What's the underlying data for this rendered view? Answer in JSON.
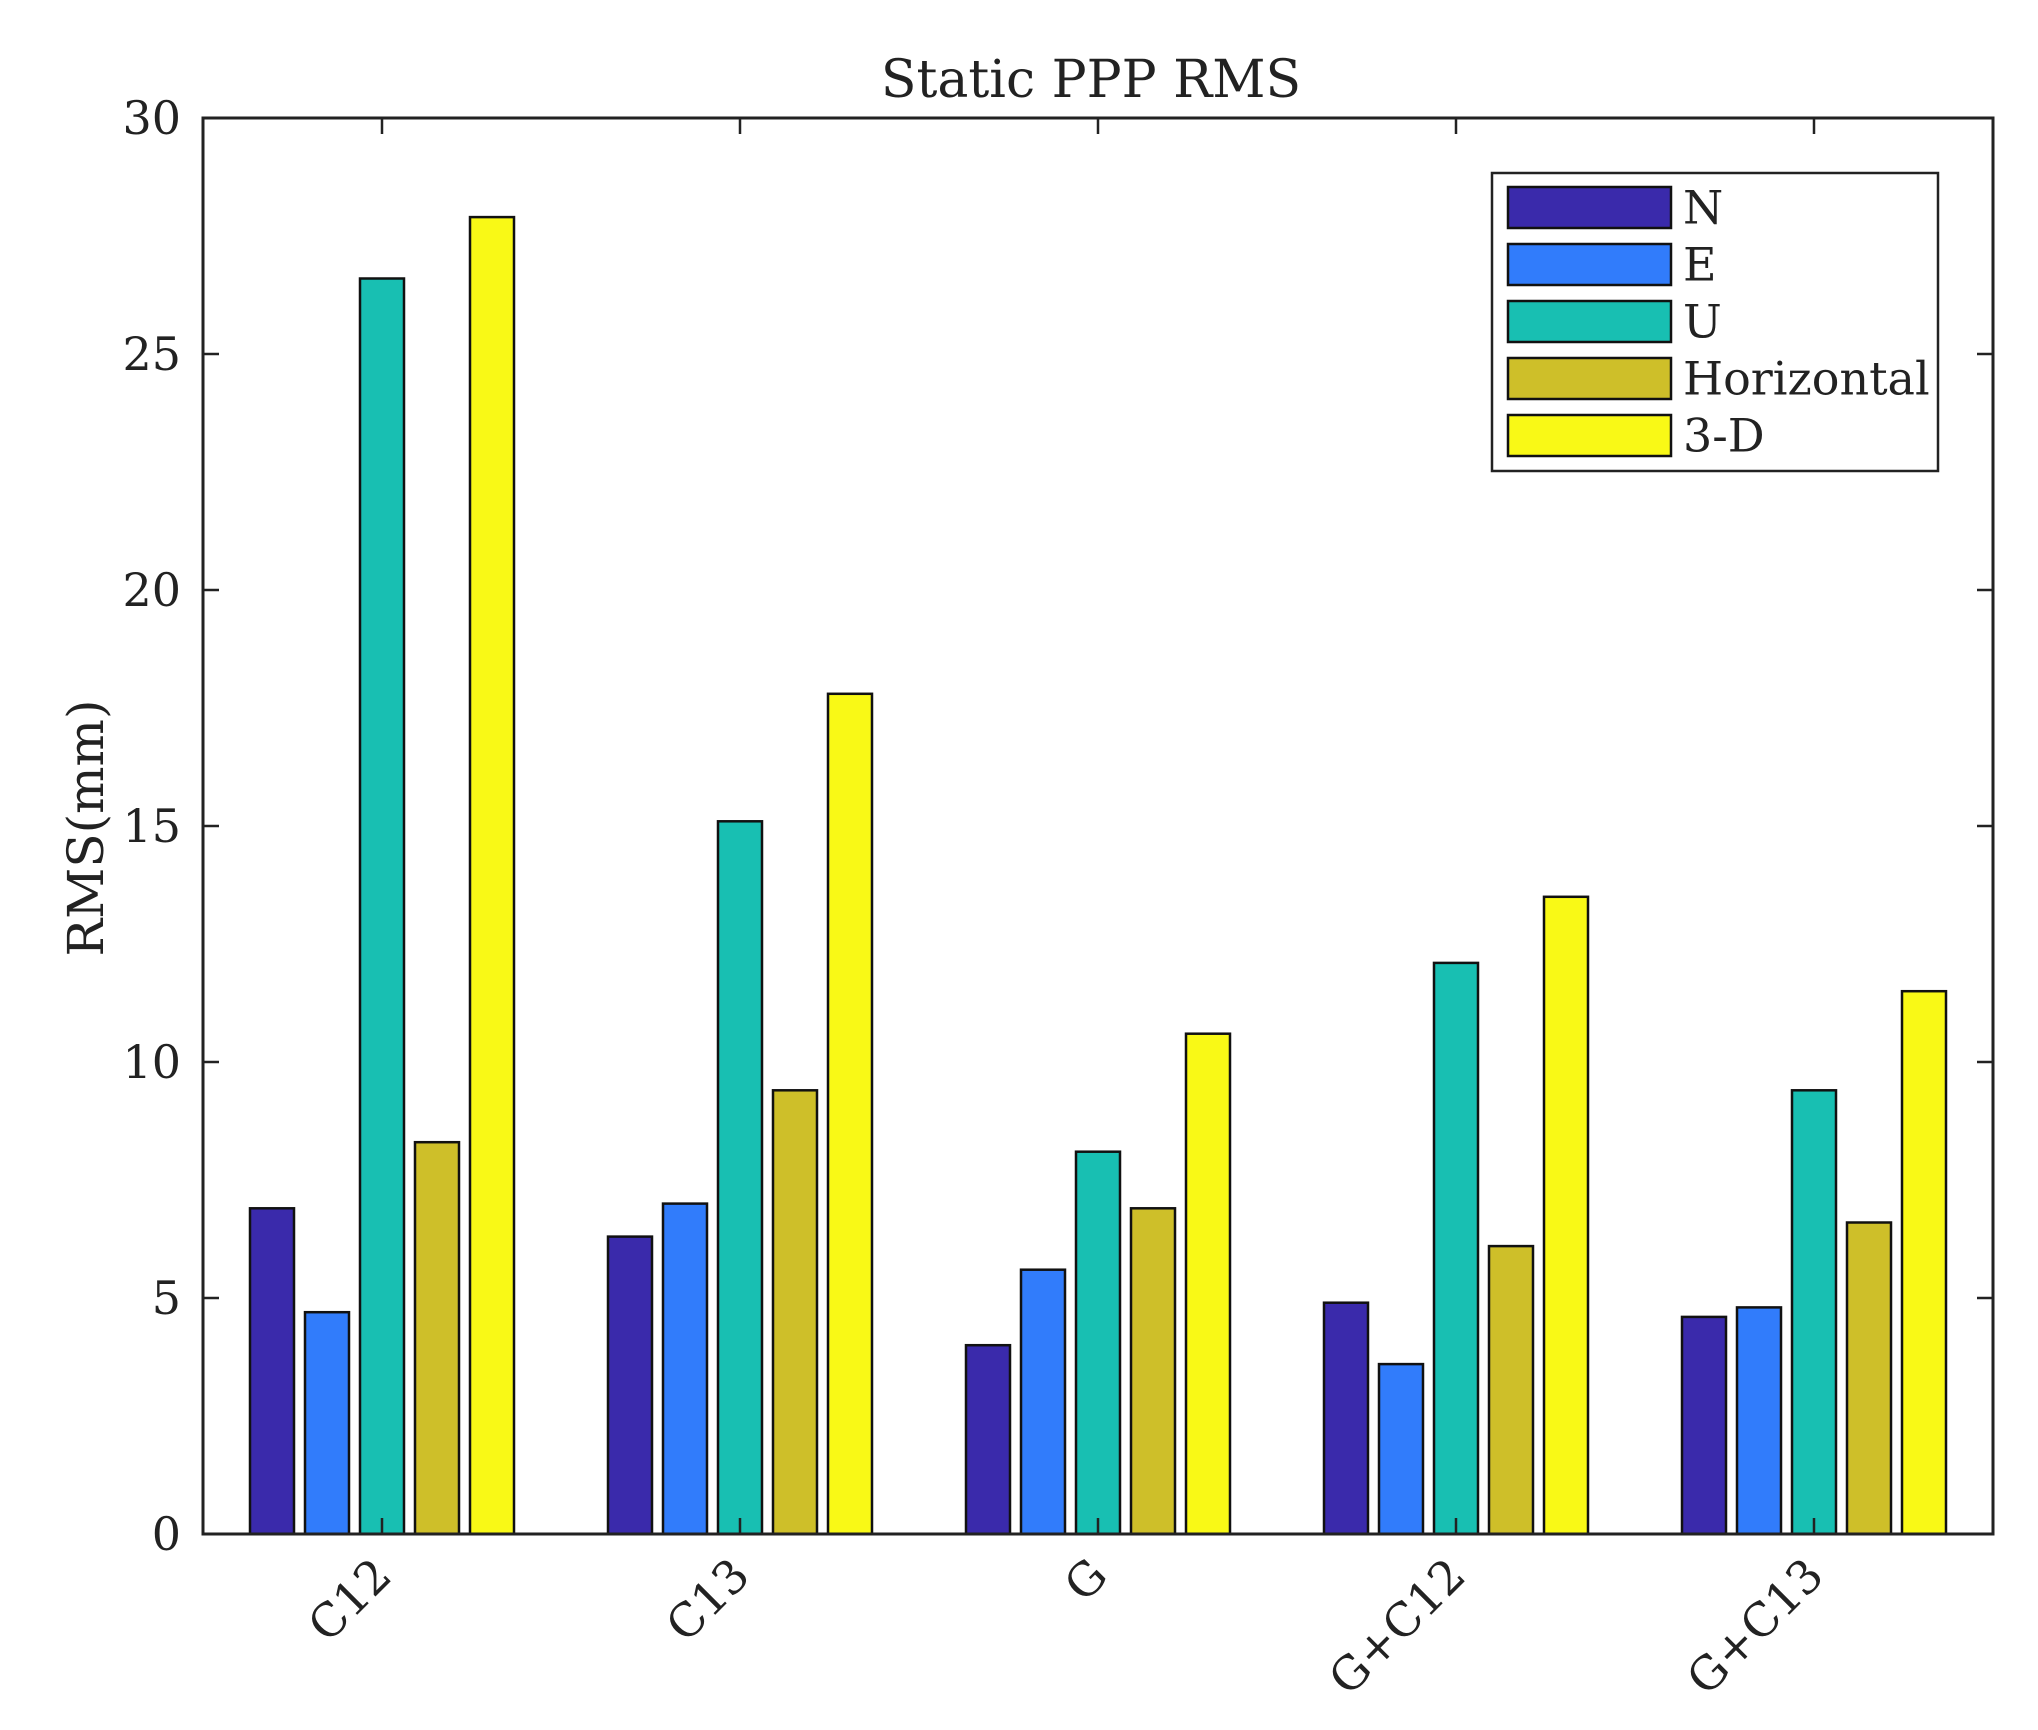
{
  "chart_data": {
    "type": "bar",
    "title": "Static PPP RMS",
    "xlabel": "",
    "ylabel": "RMS(mm)",
    "ylim": [
      0,
      30
    ],
    "yticks": [
      0,
      5,
      10,
      15,
      20,
      25,
      30
    ],
    "categories": [
      "C12",
      "C13",
      "G",
      "G+C12",
      "G+C13"
    ],
    "series": [
      {
        "name": "N",
        "color": "#3a2aab",
        "values": [
          6.9,
          6.3,
          4.0,
          4.9,
          4.6
        ]
      },
      {
        "name": "E",
        "color": "#317cfb",
        "values": [
          4.7,
          7.0,
          5.6,
          3.6,
          4.8
        ]
      },
      {
        "name": "U",
        "color": "#18bfb2",
        "values": [
          26.6,
          15.1,
          8.1,
          12.1,
          9.4
        ]
      },
      {
        "name": "Horizontal",
        "color": "#cebf29",
        "values": [
          8.3,
          9.4,
          6.9,
          6.1,
          6.6
        ]
      },
      {
        "name": "3-D",
        "color": "#f9f916",
        "values": [
          27.9,
          17.8,
          10.6,
          13.5,
          11.5
        ]
      }
    ],
    "grid": false,
    "legend_position": "top-right"
  }
}
